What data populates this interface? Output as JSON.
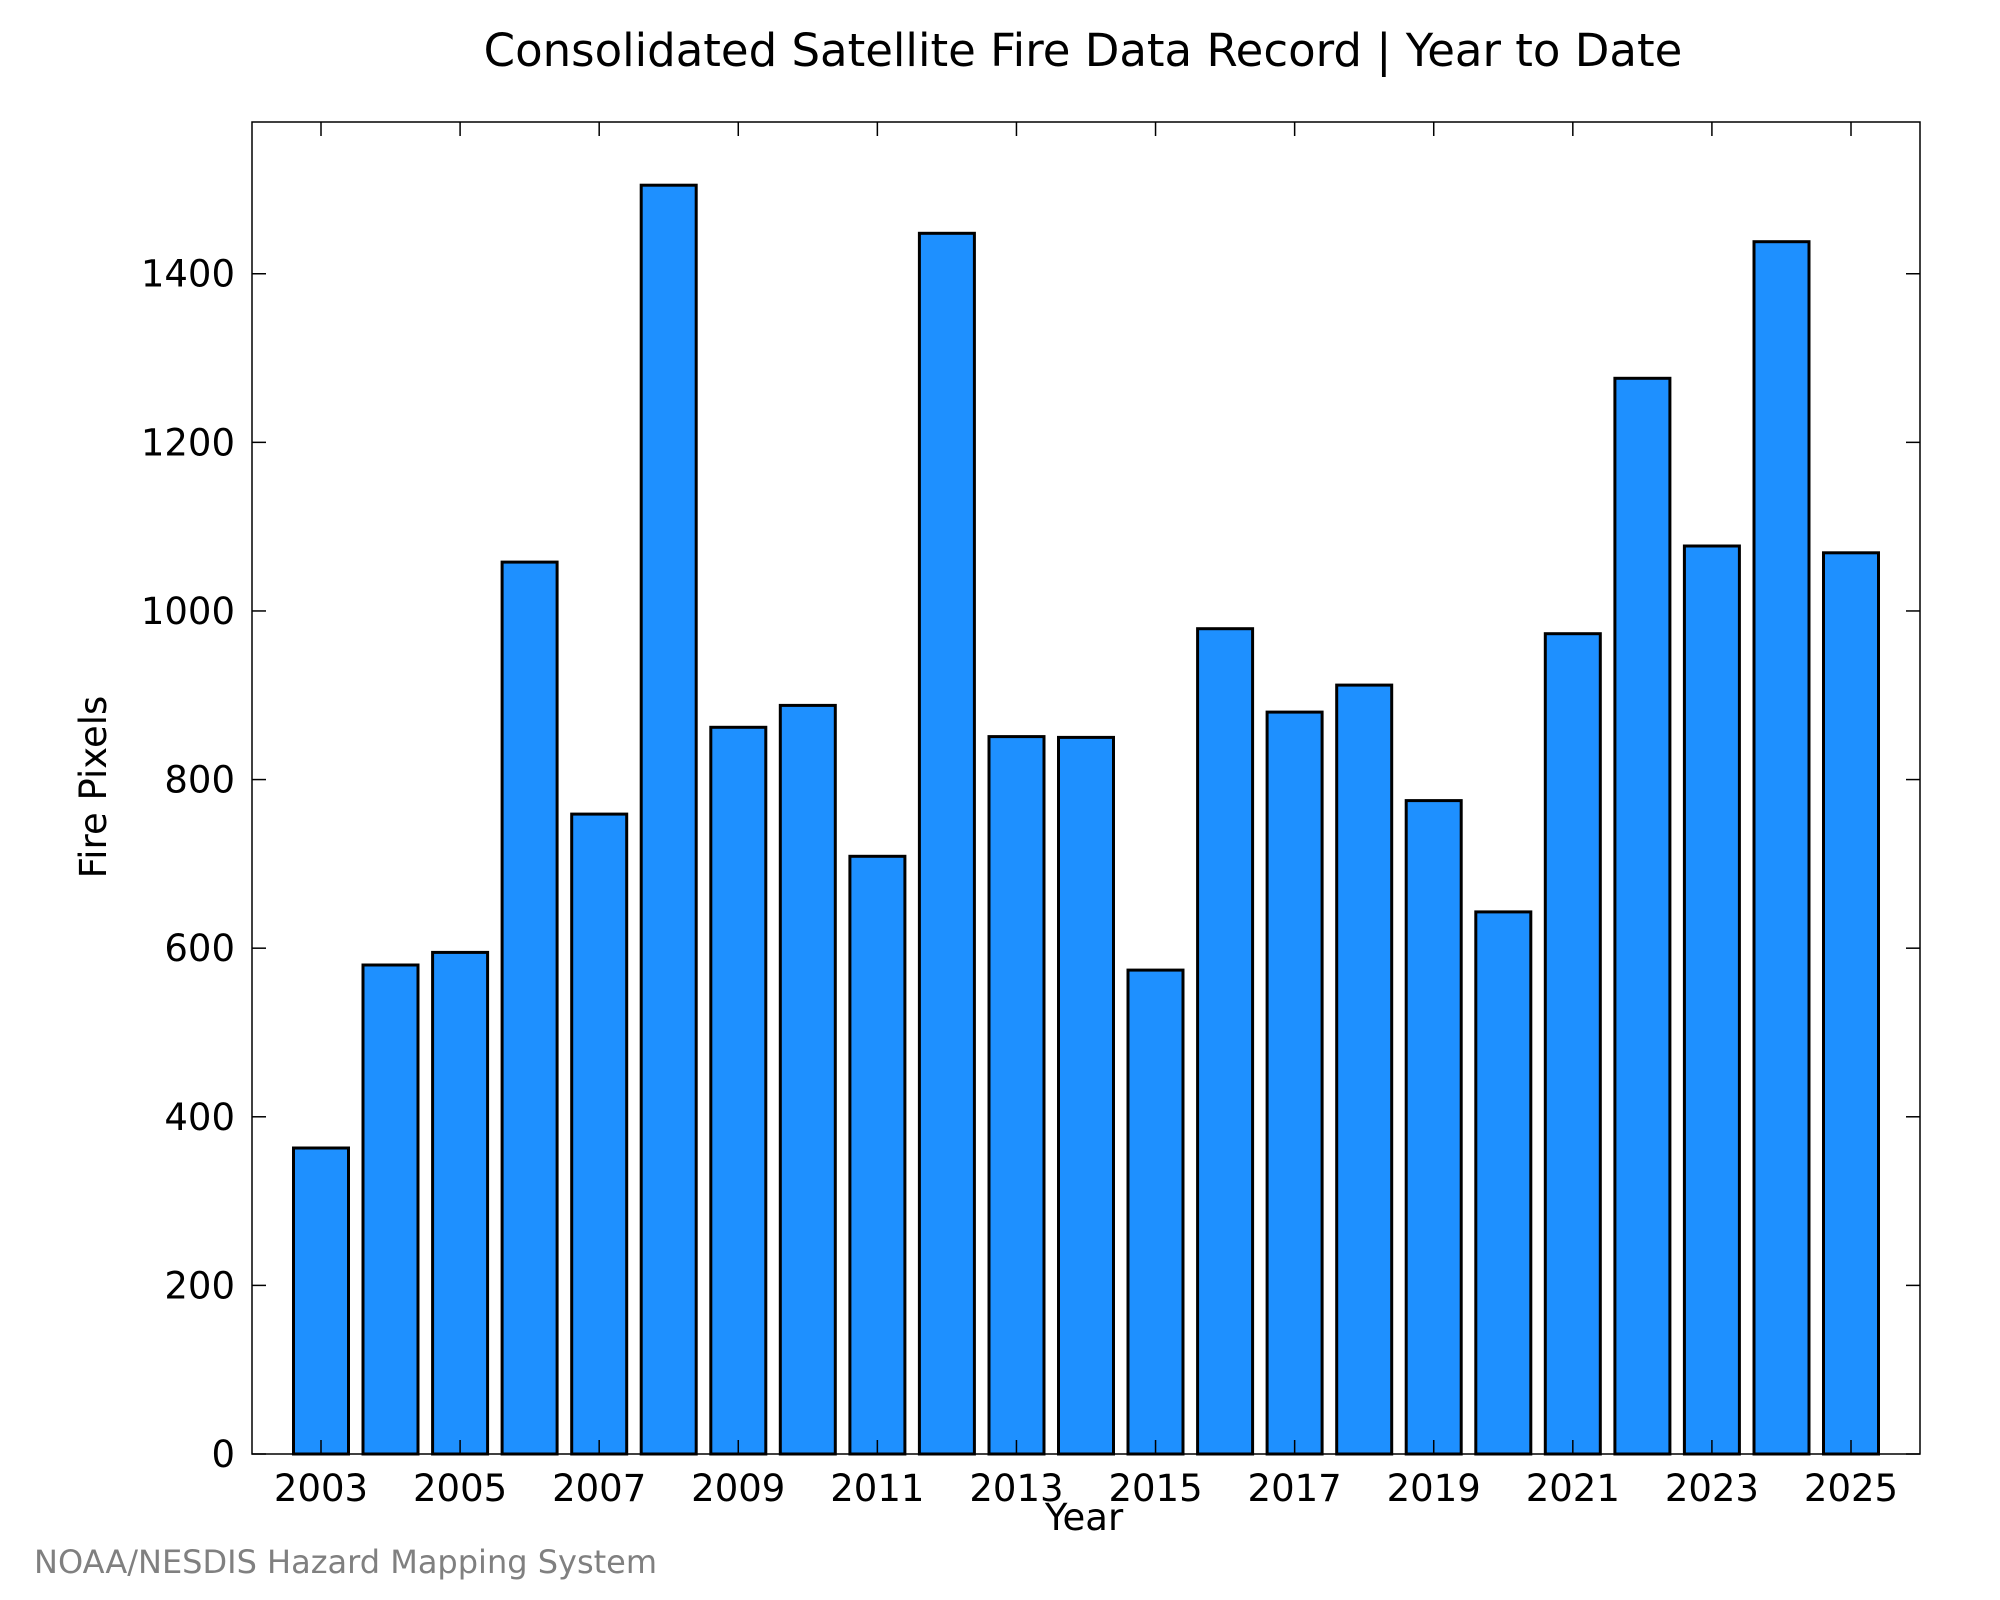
{
  "chart_data": {
    "type": "bar",
    "title": "Consolidated Satellite Fire Data Record | Year to Date",
    "xlabel": "Year",
    "ylabel": "Fire Pixels",
    "categories": [
      "2003",
      "2004",
      "2005",
      "2006",
      "2007",
      "2008",
      "2009",
      "2010",
      "2011",
      "2012",
      "2013",
      "2014",
      "2015",
      "2016",
      "2017",
      "2018",
      "2019",
      "2020",
      "2021",
      "2022",
      "2023",
      "2024",
      "2025"
    ],
    "x_tick_labels": [
      "2003",
      "2005",
      "2007",
      "2009",
      "2011",
      "2013",
      "2015",
      "2017",
      "2019",
      "2021",
      "2023",
      "2025"
    ],
    "values": [
      363,
      580,
      595,
      1058,
      759,
      1505,
      862,
      888,
      709,
      1448,
      851,
      850,
      574,
      979,
      880,
      912,
      775,
      643,
      973,
      1276,
      1077,
      1438,
      1069
    ],
    "ylim": [
      0,
      1580
    ],
    "y_ticks": [
      0,
      200,
      400,
      600,
      800,
      1000,
      1200,
      1400
    ],
    "grid": false,
    "bar_color": "#1E90FF",
    "edge_color": "#000000"
  },
  "credit": "NOAA/NESDIS Hazard Mapping System"
}
